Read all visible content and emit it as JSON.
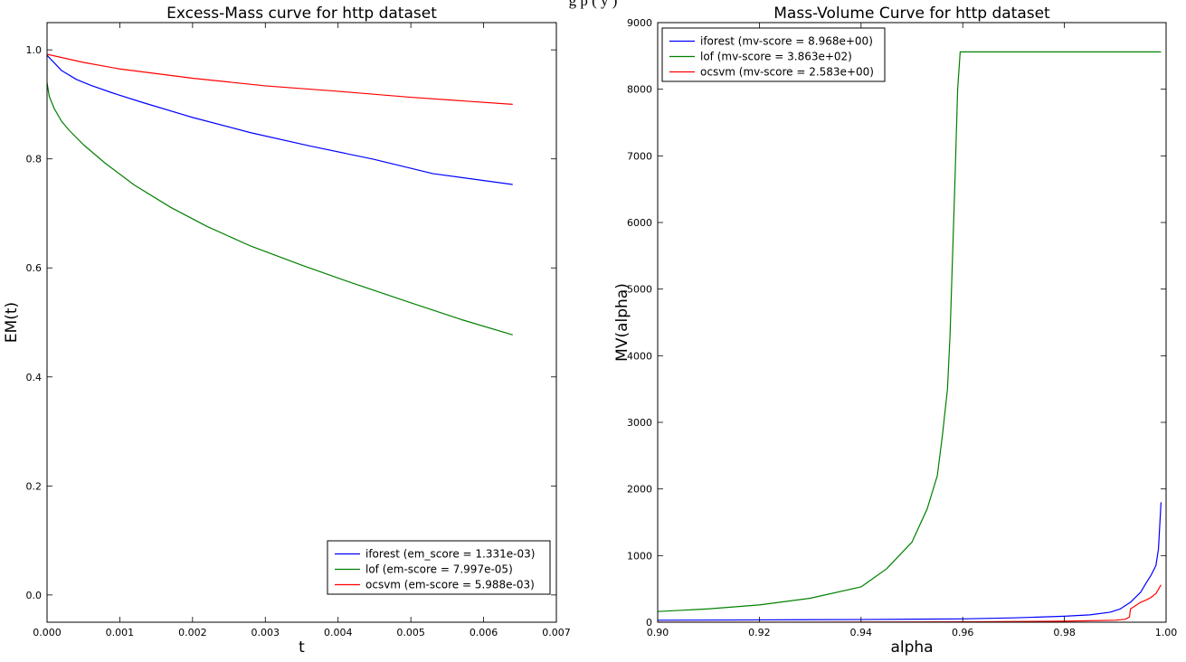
{
  "caption_fragment": "g                                                                                  p     (  y                            )",
  "chart_data": [
    {
      "type": "line",
      "title": "Excess-Mass curve for http dataset",
      "xlabel": "t",
      "ylabel": "EM(t)",
      "xlim": [
        0,
        0.007
      ],
      "ylim": [
        -0.05,
        1.05
      ],
      "xticks": [
        0,
        0.001,
        0.002,
        0.003,
        0.004,
        0.005,
        0.006,
        0.007
      ],
      "xtick_labels": [
        "0.000",
        "0.001",
        "0.002",
        "0.003",
        "0.004",
        "0.005",
        "0.006",
        "0.007"
      ],
      "yticks": [
        0,
        0.2,
        0.4,
        0.6,
        0.8,
        1.0
      ],
      "ytick_labels": [
        "0.0",
        "0.2",
        "0.4",
        "0.6",
        "0.8",
        "1.0"
      ],
      "grid": false,
      "legend_position": "lower-right",
      "series": [
        {
          "name": "iforest (em_score = 1.331e-03)",
          "color": "#0000ff",
          "x": [
            0,
            0.0001,
            0.0002,
            0.0004,
            0.0006,
            0.0009,
            0.0013,
            0.002,
            0.0028,
            0.0036,
            0.0045,
            0.0053,
            0.0064
          ],
          "y": [
            0.99,
            0.976,
            0.962,
            0.946,
            0.935,
            0.921,
            0.904,
            0.876,
            0.848,
            0.824,
            0.799,
            0.773,
            0.753
          ]
        },
        {
          "name": "lof (em-score = 7.997e-05)",
          "color": "#008000",
          "x": [
            0,
            3e-05,
            0.0001,
            0.0002,
            0.0003,
            0.0005,
            0.0008,
            0.0012,
            0.0017,
            0.0022,
            0.0028,
            0.0035,
            0.0042,
            0.005,
            0.0057,
            0.0064
          ],
          "y": [
            0.94,
            0.915,
            0.892,
            0.869,
            0.853,
            0.826,
            0.792,
            0.752,
            0.711,
            0.676,
            0.64,
            0.605,
            0.572,
            0.536,
            0.505,
            0.477
          ]
        },
        {
          "name": "ocsvm (em-score = 5.988e-03)",
          "color": "#ff0000",
          "x": [
            0,
            0.0005,
            0.001,
            0.002,
            0.003,
            0.004,
            0.005,
            0.0064
          ],
          "y": [
            0.992,
            0.977,
            0.965,
            0.948,
            0.934,
            0.924,
            0.913,
            0.9
          ]
        }
      ]
    },
    {
      "type": "line",
      "title": "Mass-Volume Curve for http dataset",
      "xlabel": "alpha",
      "ylabel": "MV(alpha)",
      "xlim": [
        0.9,
        1.0
      ],
      "ylim": [
        0,
        9000
      ],
      "xticks": [
        0.9,
        0.92,
        0.94,
        0.96,
        0.98,
        1.0
      ],
      "xtick_labels": [
        "0.90",
        "0.92",
        "0.94",
        "0.96",
        "0.98",
        "1.00"
      ],
      "yticks": [
        0,
        1000,
        2000,
        3000,
        4000,
        5000,
        6000,
        7000,
        8000,
        9000
      ],
      "ytick_labels": [
        "0",
        "1000",
        "2000",
        "3000",
        "4000",
        "5000",
        "6000",
        "7000",
        "8000",
        "9000"
      ],
      "grid": false,
      "legend_position": "upper-left",
      "series": [
        {
          "name": "iforest (mv-score = 8.968e+00)",
          "color": "#0000ff",
          "x": [
            0.9,
            0.92,
            0.94,
            0.96,
            0.97,
            0.98,
            0.985,
            0.989,
            0.991,
            0.993,
            0.995,
            0.996,
            0.997,
            0.998,
            0.9985,
            0.999
          ],
          "y": [
            30,
            35,
            40,
            50,
            65,
            90,
            110,
            150,
            200,
            300,
            450,
            580,
            700,
            850,
            1100,
            1800
          ]
        },
        {
          "name": "lof (mv-score = 3.863e+02)",
          "color": "#008000",
          "x": [
            0.9,
            0.91,
            0.92,
            0.93,
            0.94,
            0.945,
            0.95,
            0.953,
            0.955,
            0.956,
            0.957,
            0.9575,
            0.958,
            0.9585,
            0.959,
            0.9595,
            0.96,
            0.97,
            0.98,
            0.99,
            0.999
          ],
          "y": [
            160,
            200,
            260,
            360,
            530,
            800,
            1200,
            1700,
            2200,
            2800,
            3500,
            4300,
            5500,
            6700,
            8000,
            8560,
            8560,
            8560,
            8560,
            8560,
            8560
          ]
        },
        {
          "name": "ocsvm (mv-score = 2.583e+00)",
          "color": "#ff0000",
          "x": [
            0.9,
            0.92,
            0.94,
            0.96,
            0.98,
            0.99,
            0.992,
            0.9928,
            0.993,
            0.994,
            0.995,
            0.996,
            0.997,
            0.998,
            0.999
          ],
          "y": [
            0,
            0,
            2,
            5,
            15,
            30,
            45,
            80,
            200,
            250,
            300,
            330,
            370,
            430,
            560
          ]
        }
      ]
    }
  ]
}
